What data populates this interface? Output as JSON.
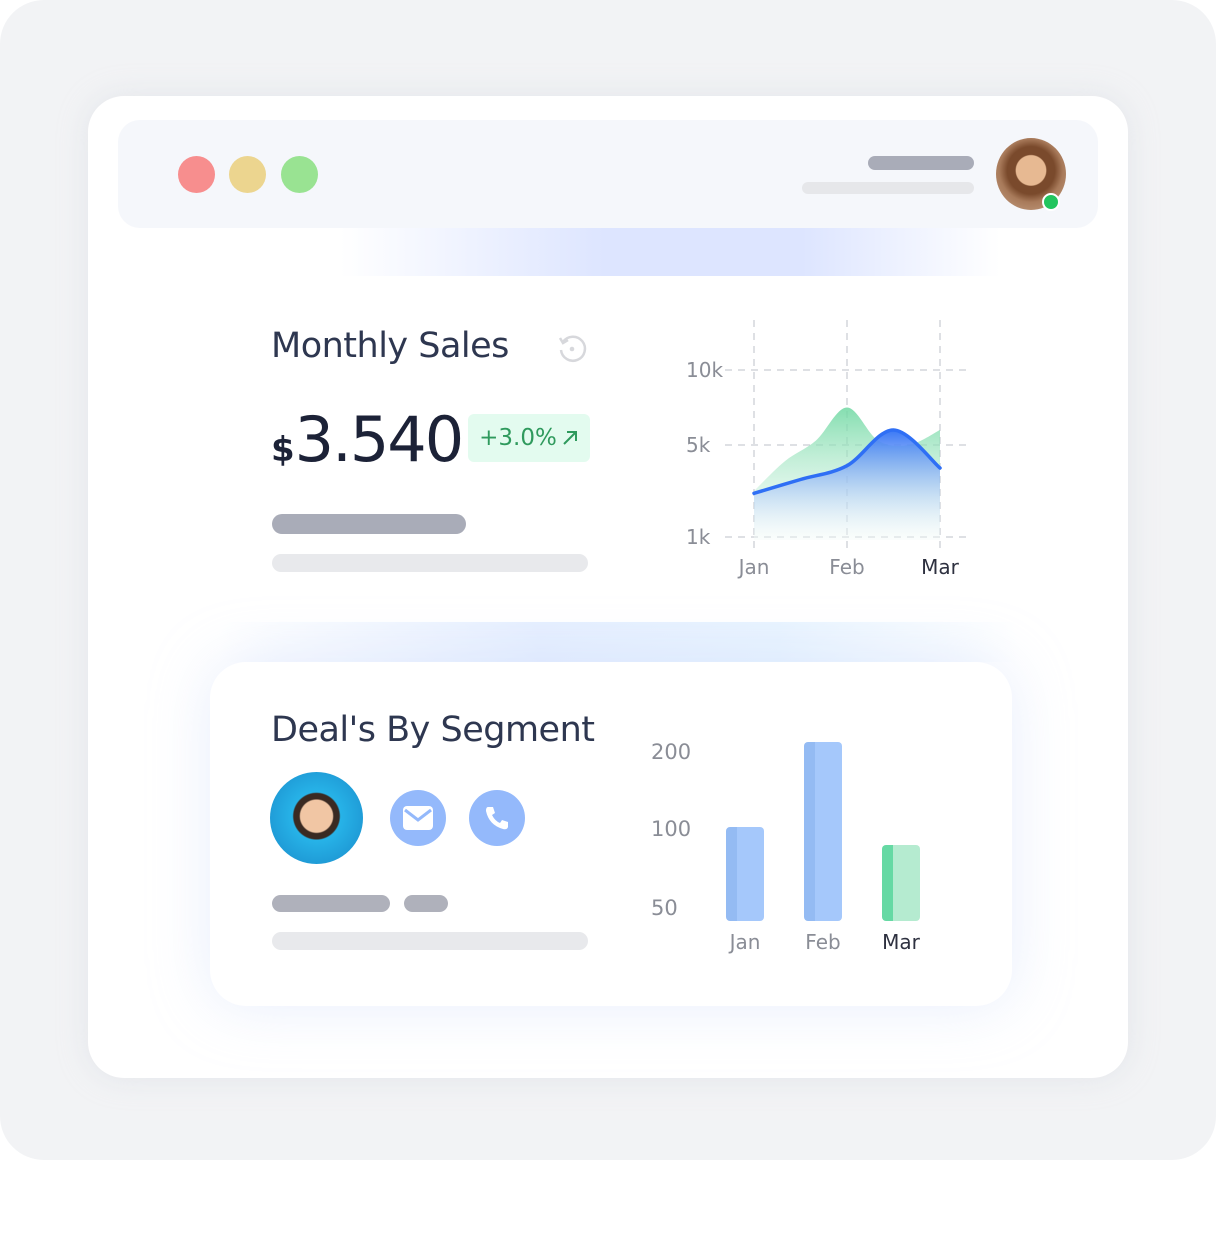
{
  "window": {
    "controls": [
      {
        "name": "close",
        "color": "#f78e8e"
      },
      {
        "name": "minimize",
        "color": "#ecd58f"
      },
      {
        "name": "maximize",
        "color": "#99e392"
      }
    ],
    "user_status": "online"
  },
  "monthly_sales": {
    "title": "Monthly Sales",
    "refresh_icon": "refresh-icon",
    "currency": "$",
    "amount": "3.540",
    "change": "+3.0%",
    "change_icon": "arrow-up-right-icon",
    "chart_data": {
      "type": "area",
      "x_ticks": [
        "Jan",
        "Feb",
        "Mar"
      ],
      "highlighted_tick": "Mar",
      "y_ticks": [
        "10k",
        "5k",
        "1k"
      ],
      "grid": true,
      "series": [
        {
          "color": "#6fd8a2",
          "points": [
            [
              "Jan",
              3000
            ],
            [
              "Jan-Feb",
              4300
            ],
            [
              "",
              5300
            ],
            [
              "Feb",
              7500
            ],
            [
              "",
              5300
            ],
            [
              "Feb-Mar",
              5000
            ],
            [
              "Mar",
              6000
            ]
          ]
        },
        {
          "color": "#2f6ff5",
          "points": [
            [
              "Jan",
              2900
            ],
            [
              "Jan-Feb",
              3500
            ],
            [
              "Feb",
              4100
            ],
            [
              "Feb-Mar",
              6000
            ],
            [
              "Mar",
              4000
            ]
          ]
        }
      ]
    }
  },
  "deals": {
    "title": "Deal's By Segment",
    "email_icon": "mail-icon",
    "phone_icon": "phone-icon",
    "chart_data": {
      "type": "bar",
      "categories": [
        "Jan",
        "Feb",
        "Mar"
      ],
      "highlighted_category": "Mar",
      "values": [
        103,
        213,
        90
      ],
      "y_ticks": [
        "200",
        "100",
        "50"
      ],
      "colors": [
        "#a5c8fb",
        "#a5c8fb",
        "#b5ebd0"
      ]
    }
  }
}
